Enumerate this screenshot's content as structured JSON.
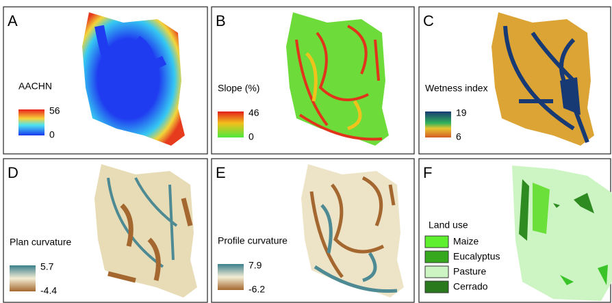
{
  "panels": [
    {
      "letter": "A",
      "title": "AACHN",
      "legend_max": 56,
      "legend_min": 0
    },
    {
      "letter": "B",
      "title": "Slope (%)",
      "legend_max": 46,
      "legend_min": 0
    },
    {
      "letter": "C",
      "title": "Wetness index",
      "legend_max": 19,
      "legend_min": 6
    },
    {
      "letter": "D",
      "title": "Plan curvature",
      "legend_max": 5.7,
      "legend_min": -4.4
    },
    {
      "letter": "E",
      "title": "Profile curvature",
      "legend_max": 7.9,
      "legend_min": -6.2
    }
  ],
  "panel_f": {
    "letter": "F",
    "legend_title": "Land use",
    "items": [
      "Maize",
      "Eucalyptus",
      "Pasture",
      "Cerrado"
    ]
  }
}
